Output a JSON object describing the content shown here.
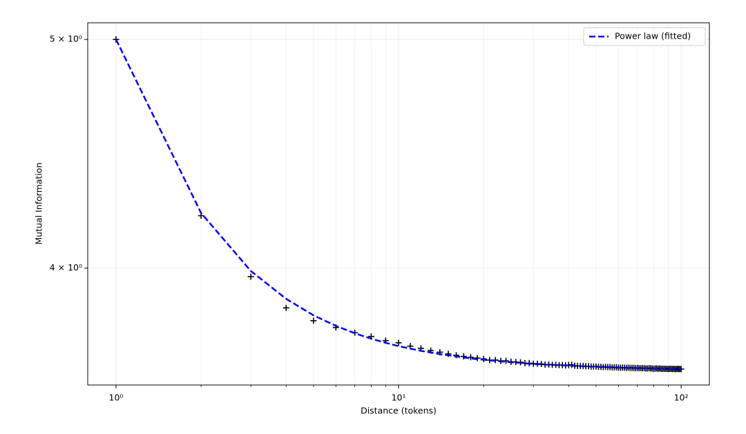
{
  "chart_data": {
    "type": "scatter-line",
    "x_label": "Distance (tokens)",
    "y_label": "Mutual Information",
    "log_x": true,
    "log_y": true,
    "grid": true,
    "legend": "upper right",
    "xlim": [
      0.794,
      125.9
    ],
    "ylim": [
      3.569,
      5.082
    ],
    "xticks": [
      {
        "value": 1,
        "label": "10⁰"
      },
      {
        "value": 10,
        "label": "10¹"
      },
      {
        "value": 100,
        "label": "10²"
      }
    ],
    "xminorticks": [
      2,
      3,
      4,
      5,
      6,
      7,
      8,
      9,
      20,
      30,
      40,
      50,
      60,
      70,
      80,
      90
    ],
    "yticks": [
      {
        "value": 4,
        "label": "4 × 10⁰"
      },
      {
        "value": 5,
        "label": "5 × 10⁰"
      }
    ],
    "x": [
      1,
      2,
      3,
      4,
      5,
      6,
      7,
      8,
      9,
      10,
      11,
      12,
      13,
      14,
      15,
      16,
      17,
      18,
      19,
      20,
      21,
      22,
      23,
      24,
      25,
      26,
      27,
      28,
      29,
      30,
      31,
      32,
      33,
      34,
      35,
      36,
      37,
      38,
      39,
      40,
      41,
      42,
      43,
      44,
      45,
      46,
      47,
      48,
      49,
      50,
      51,
      52,
      53,
      54,
      55,
      56,
      57,
      58,
      59,
      60,
      61,
      62,
      63,
      64,
      65,
      66,
      67,
      68,
      69,
      70,
      71,
      72,
      73,
      74,
      75,
      76,
      77,
      78,
      79,
      80,
      81,
      82,
      83,
      84,
      85,
      86,
      87,
      88,
      89,
      90,
      91,
      92,
      93,
      94,
      95,
      96,
      97,
      98,
      99,
      100
    ],
    "series": [
      {
        "marker": "+",
        "color": "#000000",
        "values": [
          5.0,
          4.21,
          3.967,
          3.848,
          3.8,
          3.775,
          3.756,
          3.742,
          3.727,
          3.719,
          3.707,
          3.699,
          3.691,
          3.685,
          3.679,
          3.674,
          3.67,
          3.667,
          3.664,
          3.661,
          3.657,
          3.657,
          3.654,
          3.654,
          3.651,
          3.65,
          3.649,
          3.646,
          3.646,
          3.644,
          3.644,
          3.643,
          3.641,
          3.641,
          3.64,
          3.64,
          3.639,
          3.639,
          3.638,
          3.639,
          3.64,
          3.637,
          3.636,
          3.636,
          3.636,
          3.635,
          3.635,
          3.634,
          3.634,
          3.634,
          3.633,
          3.633,
          3.632,
          3.633,
          3.632,
          3.632,
          3.631,
          3.631,
          3.631,
          3.63,
          3.63,
          3.63,
          3.63,
          3.629,
          3.63,
          3.629,
          3.629,
          3.629,
          3.628,
          3.629,
          3.628,
          3.628,
          3.628,
          3.628,
          3.627,
          3.627,
          3.628,
          3.627,
          3.627,
          3.626,
          3.627,
          3.627,
          3.626,
          3.627,
          3.626,
          3.626,
          3.626,
          3.626,
          3.626,
          3.625,
          3.626,
          3.626,
          3.625,
          3.626,
          3.625,
          3.625,
          3.626,
          3.625,
          3.625,
          3.625
        ]
      },
      {
        "name": "Power law (fitted)",
        "color": "#0000ff",
        "linestyle": "dashed",
        "values": [
          5.0,
          4.221,
          3.989,
          3.882,
          3.82,
          3.781,
          3.754,
          3.734,
          3.719,
          3.707,
          3.698,
          3.69,
          3.684,
          3.678,
          3.674,
          3.67,
          3.666,
          3.663,
          3.66,
          3.658,
          3.656,
          3.654,
          3.652,
          3.651,
          3.649,
          3.648,
          3.647,
          3.645,
          3.644,
          3.643,
          3.642,
          3.642,
          3.641,
          3.64,
          3.64,
          3.639,
          3.639,
          3.638,
          3.638,
          3.637,
          3.637,
          3.636,
          3.636,
          3.635,
          3.635,
          3.634,
          3.634,
          3.634,
          3.633,
          3.633,
          3.633,
          3.632,
          3.632,
          3.632,
          3.632,
          3.631,
          3.631,
          3.631,
          3.63,
          3.63,
          3.63,
          3.63,
          3.63,
          3.629,
          3.629,
          3.629,
          3.629,
          3.629,
          3.628,
          3.628,
          3.628,
          3.628,
          3.628,
          3.628,
          3.628,
          3.627,
          3.627,
          3.627,
          3.627,
          3.627,
          3.627,
          3.627,
          3.627,
          3.626,
          3.626,
          3.626,
          3.626,
          3.626,
          3.626,
          3.626,
          3.626,
          3.626,
          3.626,
          3.626,
          3.626,
          3.626,
          3.626,
          3.625,
          3.625,
          3.625
        ]
      }
    ]
  }
}
